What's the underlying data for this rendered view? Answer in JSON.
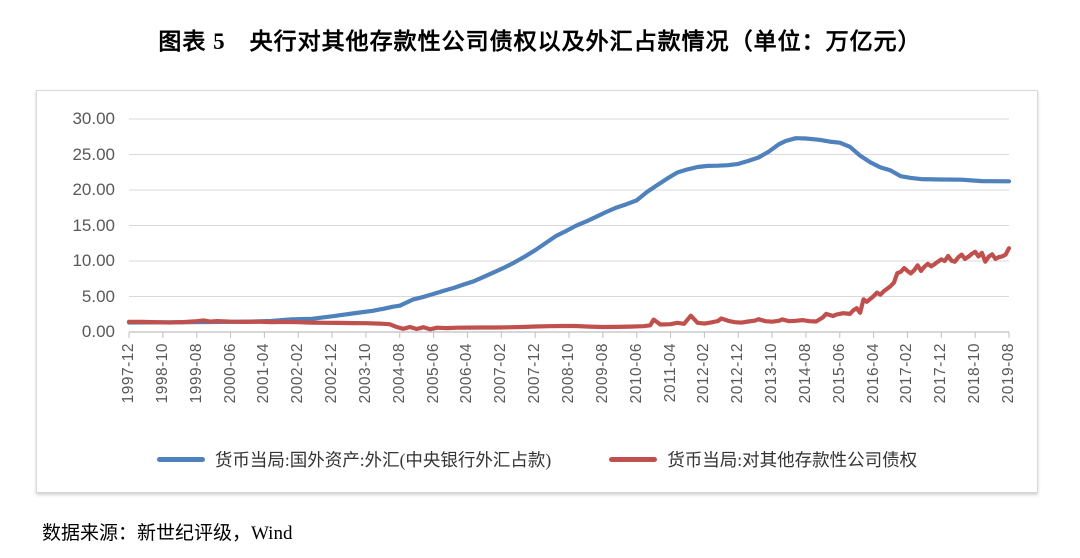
{
  "title": "图表 5　央行对其他存款性公司债权以及外汇占款情况（单位：万亿元）",
  "source": "数据来源：新世纪评级，Wind",
  "colors": {
    "blue_series": "#4F81BD",
    "red_series": "#C0504D",
    "grid": "#D9D9D9",
    "axis": "#BFBFBF",
    "tick_text": "#595959"
  },
  "chart_data": {
    "type": "line",
    "title": "图表 5　央行对其他存款性公司债权以及外汇占款情况（单位：万亿元）",
    "unit": "万亿元",
    "ylim": [
      0,
      30
    ],
    "ytick_interval": 5,
    "y_tick_labels": [
      "30.00",
      "25.00",
      "20.00",
      "15.00",
      "10.00",
      "5.00",
      "0.00"
    ],
    "grid": "horizontal",
    "legend_position": "bottom",
    "x_range_months": 260,
    "x_tick_every_months": 10,
    "x_tick_labels": [
      "1997-12",
      "1998-10",
      "1999-08",
      "2000-06",
      "2001-04",
      "2002-02",
      "2002-12",
      "2003-10",
      "2004-08",
      "2005-06",
      "2006-04",
      "2007-02",
      "2007-12",
      "2008-10",
      "2009-08",
      "2010-06",
      "2011-04",
      "2012-02",
      "2012-12",
      "2013-10",
      "2014-08",
      "2015-06",
      "2016-04",
      "2017-02",
      "2017-12",
      "2018-10",
      "2019-08"
    ],
    "points_format": "[months_since_1997-12, value_trillion_CNY]",
    "series": [
      {
        "name": "货币当局:国外资产:外汇(中央银行外汇占款)",
        "color": "#4F81BD",
        "points": [
          [
            0,
            1.34
          ],
          [
            6,
            1.35
          ],
          [
            12,
            1.37
          ],
          [
            18,
            1.39
          ],
          [
            24,
            1.41
          ],
          [
            30,
            1.43
          ],
          [
            36,
            1.47
          ],
          [
            42,
            1.55
          ],
          [
            48,
            1.77
          ],
          [
            54,
            1.86
          ],
          [
            60,
            2.21
          ],
          [
            66,
            2.6
          ],
          [
            72,
            2.98
          ],
          [
            75,
            3.26
          ],
          [
            78,
            3.57
          ],
          [
            80,
            3.7
          ],
          [
            84,
            4.59
          ],
          [
            87,
            4.95
          ],
          [
            90,
            5.36
          ],
          [
            93,
            5.8
          ],
          [
            96,
            6.21
          ],
          [
            99,
            6.7
          ],
          [
            102,
            7.17
          ],
          [
            105,
            7.8
          ],
          [
            108,
            8.44
          ],
          [
            111,
            9.1
          ],
          [
            114,
            9.83
          ],
          [
            117,
            10.65
          ],
          [
            120,
            11.52
          ],
          [
            123,
            12.5
          ],
          [
            126,
            13.48
          ],
          [
            129,
            14.2
          ],
          [
            132,
            14.96
          ],
          [
            135,
            15.55
          ],
          [
            138,
            16.23
          ],
          [
            141,
            16.9
          ],
          [
            144,
            17.52
          ],
          [
            147,
            18.0
          ],
          [
            150,
            18.53
          ],
          [
            153,
            19.7
          ],
          [
            156,
            20.68
          ],
          [
            159,
            21.6
          ],
          [
            162,
            22.47
          ],
          [
            165,
            22.9
          ],
          [
            168,
            23.24
          ],
          [
            171,
            23.4
          ],
          [
            174,
            23.42
          ],
          [
            177,
            23.5
          ],
          [
            180,
            23.67
          ],
          [
            183,
            24.1
          ],
          [
            186,
            24.58
          ],
          [
            189,
            25.4
          ],
          [
            192,
            26.43
          ],
          [
            194,
            26.9
          ],
          [
            197,
            27.3
          ],
          [
            200,
            27.25
          ],
          [
            204,
            27.07
          ],
          [
            207,
            26.82
          ],
          [
            210,
            26.66
          ],
          [
            213,
            26.08
          ],
          [
            216,
            24.85
          ],
          [
            219,
            23.9
          ],
          [
            222,
            23.19
          ],
          [
            225,
            22.76
          ],
          [
            228,
            21.94
          ],
          [
            231,
            21.7
          ],
          [
            234,
            21.53
          ],
          [
            240,
            21.48
          ],
          [
            246,
            21.45
          ],
          [
            252,
            21.25
          ],
          [
            260,
            21.23
          ]
        ]
      },
      {
        "name": "货币当局:对其他存款性公司债权",
        "color": "#C0504D",
        "points": [
          [
            0,
            1.44
          ],
          [
            4,
            1.42
          ],
          [
            8,
            1.38
          ],
          [
            12,
            1.34
          ],
          [
            16,
            1.4
          ],
          [
            20,
            1.52
          ],
          [
            22,
            1.64
          ],
          [
            24,
            1.47
          ],
          [
            26,
            1.54
          ],
          [
            28,
            1.5
          ],
          [
            30,
            1.45
          ],
          [
            34,
            1.42
          ],
          [
            38,
            1.45
          ],
          [
            42,
            1.4
          ],
          [
            46,
            1.42
          ],
          [
            50,
            1.38
          ],
          [
            54,
            1.33
          ],
          [
            58,
            1.3
          ],
          [
            62,
            1.28
          ],
          [
            66,
            1.26
          ],
          [
            70,
            1.24
          ],
          [
            74,
            1.18
          ],
          [
            77,
            1.1
          ],
          [
            79,
            0.72
          ],
          [
            81,
            0.45
          ],
          [
            83,
            0.7
          ],
          [
            85,
            0.42
          ],
          [
            87,
            0.68
          ],
          [
            89,
            0.38
          ],
          [
            91,
            0.6
          ],
          [
            94,
            0.55
          ],
          [
            97,
            0.6
          ],
          [
            100,
            0.62
          ],
          [
            104,
            0.64
          ],
          [
            108,
            0.63
          ],
          [
            112,
            0.66
          ],
          [
            116,
            0.7
          ],
          [
            120,
            0.78
          ],
          [
            124,
            0.82
          ],
          [
            128,
            0.85
          ],
          [
            132,
            0.84
          ],
          [
            136,
            0.76
          ],
          [
            140,
            0.71
          ],
          [
            144,
            0.72
          ],
          [
            148,
            0.76
          ],
          [
            152,
            0.82
          ],
          [
            154,
            0.95
          ],
          [
            155,
            1.75
          ],
          [
            157,
            1.05
          ],
          [
            160,
            1.1
          ],
          [
            162,
            1.3
          ],
          [
            164,
            1.15
          ],
          [
            166,
            2.3
          ],
          [
            168,
            1.3
          ],
          [
            170,
            1.18
          ],
          [
            172,
            1.35
          ],
          [
            174,
            1.55
          ],
          [
            175,
            1.9
          ],
          [
            177,
            1.58
          ],
          [
            179,
            1.38
          ],
          [
            181,
            1.32
          ],
          [
            183,
            1.48
          ],
          [
            185,
            1.6
          ],
          [
            186,
            1.8
          ],
          [
            188,
            1.52
          ],
          [
            190,
            1.45
          ],
          [
            192,
            1.58
          ],
          [
            193,
            1.78
          ],
          [
            195,
            1.52
          ],
          [
            197,
            1.58
          ],
          [
            199,
            1.68
          ],
          [
            201,
            1.52
          ],
          [
            203,
            1.48
          ],
          [
            205,
            2.05
          ],
          [
            206,
            2.55
          ],
          [
            208,
            2.25
          ],
          [
            209,
            2.45
          ],
          [
            211,
            2.65
          ],
          [
            213,
            2.55
          ],
          [
            214,
            3.05
          ],
          [
            215,
            3.35
          ],
          [
            216,
            2.7
          ],
          [
            217,
            4.6
          ],
          [
            218,
            4.25
          ],
          [
            219,
            4.65
          ],
          [
            220,
            5.05
          ],
          [
            221,
            5.55
          ],
          [
            222,
            5.25
          ],
          [
            223,
            5.75
          ],
          [
            224,
            6.1
          ],
          [
            225,
            6.45
          ],
          [
            226,
            6.95
          ],
          [
            227,
            8.3
          ],
          [
            228,
            8.47
          ],
          [
            229,
            9.0
          ],
          [
            230,
            8.6
          ],
          [
            231,
            8.25
          ],
          [
            232,
            8.7
          ],
          [
            233,
            9.4
          ],
          [
            234,
            8.6
          ],
          [
            235,
            9.2
          ],
          [
            236,
            9.6
          ],
          [
            237,
            9.25
          ],
          [
            238,
            9.55
          ],
          [
            239,
            9.9
          ],
          [
            240,
            10.22
          ],
          [
            241,
            10.0
          ],
          [
            242,
            10.7
          ],
          [
            243,
            10.05
          ],
          [
            244,
            9.9
          ],
          [
            245,
            10.5
          ],
          [
            246,
            10.9
          ],
          [
            247,
            10.3
          ],
          [
            248,
            10.6
          ],
          [
            249,
            11.0
          ],
          [
            250,
            11.3
          ],
          [
            251,
            10.65
          ],
          [
            252,
            11.15
          ],
          [
            253,
            9.9
          ],
          [
            254,
            10.6
          ],
          [
            255,
            10.95
          ],
          [
            256,
            10.3
          ],
          [
            257,
            10.55
          ],
          [
            258,
            10.65
          ],
          [
            259,
            10.9
          ],
          [
            260,
            11.8
          ]
        ]
      }
    ]
  }
}
